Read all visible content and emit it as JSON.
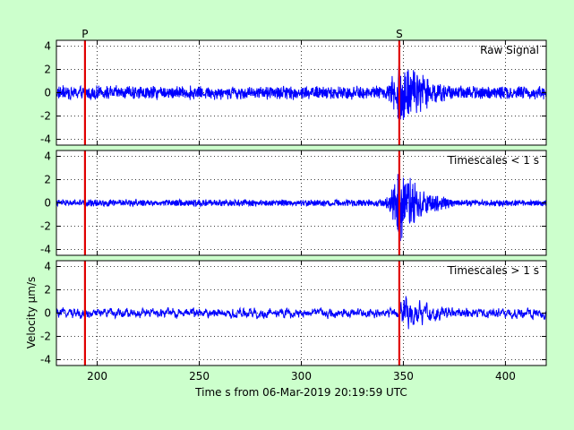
{
  "colors": {
    "figure_background": "#ccffcc",
    "axes_background": "#ffffff",
    "trace": "#0000ff",
    "phase_marker": "#e00000",
    "grid": "#000000"
  },
  "phase_labels": {
    "p": "P",
    "s": "S"
  },
  "chart_data": [
    {
      "type": "line",
      "title": "Raw Signal",
      "title_placement": "top-right inside",
      "xlim": [
        180,
        420
      ],
      "ylim": [
        -4.5,
        4.5
      ],
      "yticks": [
        -4,
        -2,
        0,
        2,
        4
      ],
      "grid": true,
      "noise_amplitude": 0.5,
      "event_peak_amplitude": 3.8,
      "event_onset_s": 337,
      "event_peak_s": 348,
      "event_decay_s": 15,
      "markers": [
        {
          "label": "P",
          "x": 194
        },
        {
          "label": "S",
          "x": 348
        }
      ]
    },
    {
      "type": "line",
      "title": "Timescales < 1 s",
      "title_placement": "top-right inside",
      "xlim": [
        180,
        420
      ],
      "ylim": [
        -4.5,
        4.5
      ],
      "yticks": [
        -4,
        -2,
        0,
        2,
        4
      ],
      "grid": true,
      "noise_amplitude": 0.25,
      "event_peak_amplitude": 3.8,
      "event_onset_s": 337,
      "event_peak_s": 348,
      "event_decay_s": 12,
      "markers": [
        {
          "label": "P",
          "x": 194
        },
        {
          "label": "S",
          "x": 348
        }
      ]
    },
    {
      "type": "line",
      "title": "Timescales > 1 s",
      "title_placement": "top-right inside",
      "xlim": [
        180,
        420
      ],
      "ylim": [
        -4.5,
        4.5
      ],
      "yticks": [
        -4,
        -2,
        0,
        2,
        4
      ],
      "xticks": [
        200,
        250,
        300,
        350,
        400
      ],
      "grid": true,
      "noise_amplitude": 0.35,
      "event_peak_amplitude": 1.6,
      "event_onset_s": 345,
      "event_peak_s": 350,
      "event_decay_s": 20,
      "ylabel": "Velocity μm/s",
      "xlabel": "Time s from 06-Mar-2019 20:19:59 UTC",
      "markers": [
        {
          "label": "P",
          "x": 194
        },
        {
          "label": "S",
          "x": 348
        }
      ]
    }
  ]
}
